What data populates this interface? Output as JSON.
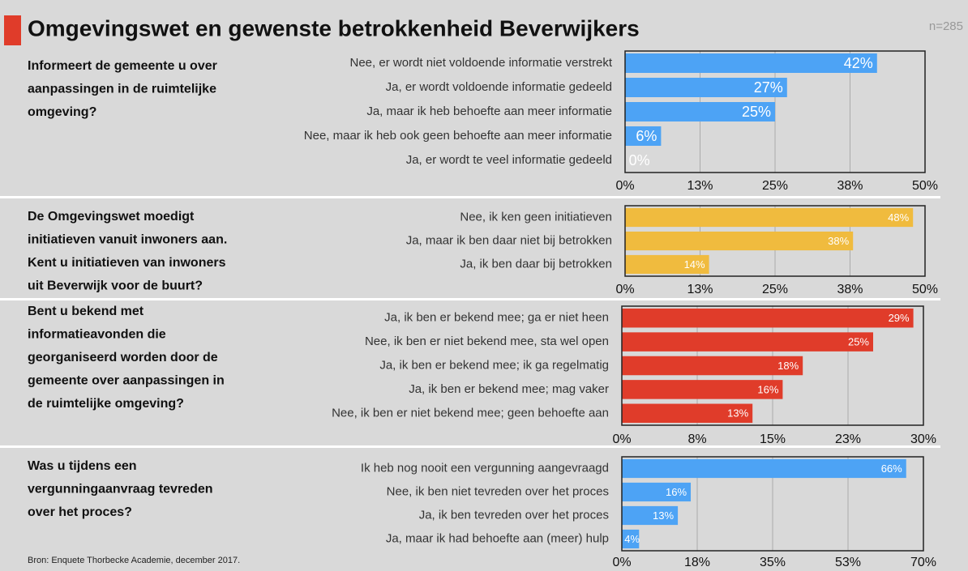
{
  "title": "Omgevingswet en gewenste betrokkenheid Beverwijkers",
  "note": "n=285",
  "source": "Bron: Enquete Thorbecke Academie, december 2017.",
  "chart_data": [
    {
      "type": "bar",
      "orientation": "horizontal",
      "color": "#4da3f5",
      "title": [
        "Informeert de gemeente u over",
        "aanpassingen in de ruimtelijke",
        "omgeving?"
      ],
      "categories": [
        "Nee, er wordt niet voldoende informatie verstrekt",
        "Ja, er wordt voldoende informatie gedeeld",
        "Ja, maar ik heb behoefte aan meer informatie",
        "Nee, maar ik heb ook geen behoefte aan meer informatie",
        "Ja, er wordt te veel informatie gedeeld"
      ],
      "values": [
        42,
        27,
        25,
        6,
        0
      ],
      "value_labels": [
        "42%",
        "27%",
        "25%",
        "6%",
        "0%"
      ],
      "xlim": [
        0,
        50
      ],
      "xticks": [
        {
          "value": 0,
          "label": "0%"
        },
        {
          "value": 12.5,
          "label": "13%"
        },
        {
          "value": 25,
          "label": "25%"
        },
        {
          "value": 37.5,
          "label": "38%"
        },
        {
          "value": 50,
          "label": "50%"
        }
      ],
      "grid": true
    },
    {
      "type": "bar",
      "orientation": "horizontal",
      "color": "#f0bb3e",
      "title": [
        "De Omgevingswet moedigt",
        "initiatieven vanuit inwoners aan.",
        "Kent u  initiatieven van inwoners",
        "uit Beverwijk voor de buurt?"
      ],
      "categories": [
        "Nee, ik ken geen initiatieven",
        "Ja, maar ik ben daar niet bij betrokken",
        "Ja, ik ben daar bij betrokken"
      ],
      "values": [
        48,
        38,
        14
      ],
      "value_labels": [
        "48%",
        "38%",
        "14%"
      ],
      "xlim": [
        0,
        50
      ],
      "xticks": [
        {
          "value": 0,
          "label": "0%"
        },
        {
          "value": 12.5,
          "label": "13%"
        },
        {
          "value": 25,
          "label": "25%"
        },
        {
          "value": 37.5,
          "label": "38%"
        },
        {
          "value": 50,
          "label": "50%"
        }
      ],
      "grid": true
    },
    {
      "type": "bar",
      "orientation": "horizontal",
      "color": "#e03c2a",
      "title": [
        "Bent u bekend met",
        "informatieavonden die",
        "georganiseerd worden door de",
        "gemeente over aanpassingen in",
        "de ruimtelijke omgeving?"
      ],
      "categories": [
        "Ja, ik ben er bekend mee; ga er niet heen",
        "Nee, ik ben er niet bekend mee, sta wel open",
        "Ja, ik ben er bekend mee; ik ga regelmatig",
        "Ja, ik ben er bekend mee; mag vaker",
        "Nee, ik ben er niet bekend mee; geen behoefte aan"
      ],
      "values": [
        29,
        25,
        18,
        16,
        13
      ],
      "value_labels": [
        "29%",
        "25%",
        "18%",
        "16%",
        "13%"
      ],
      "xlim": [
        0,
        30
      ],
      "xticks": [
        {
          "value": 0,
          "label": "0%"
        },
        {
          "value": 7.5,
          "label": "8%"
        },
        {
          "value": 15,
          "label": "15%"
        },
        {
          "value": 22.5,
          "label": "23%"
        },
        {
          "value": 30,
          "label": "30%"
        }
      ],
      "grid": true
    },
    {
      "type": "bar",
      "orientation": "horizontal",
      "color": "#4da3f5",
      "title": [
        "Was u tijdens een",
        "vergunningaanvraag tevreden",
        "over het proces?"
      ],
      "categories": [
        "Ik heb nog nooit een vergunning aangevraagd",
        "Nee, ik ben niet tevreden over het proces",
        "Ja, ik ben tevreden over het proces",
        "Ja, maar ik had behoefte aan (meer) hulp"
      ],
      "values": [
        66,
        16,
        13,
        4
      ],
      "value_labels": [
        "66%",
        "16%",
        "13%",
        "4%"
      ],
      "xlim": [
        0,
        70
      ],
      "xticks": [
        {
          "value": 0,
          "label": "0%"
        },
        {
          "value": 17.5,
          "label": "18%"
        },
        {
          "value": 35,
          "label": "35%"
        },
        {
          "value": 52.5,
          "label": "53%"
        },
        {
          "value": 70,
          "label": "70%"
        }
      ],
      "grid": true
    }
  ]
}
